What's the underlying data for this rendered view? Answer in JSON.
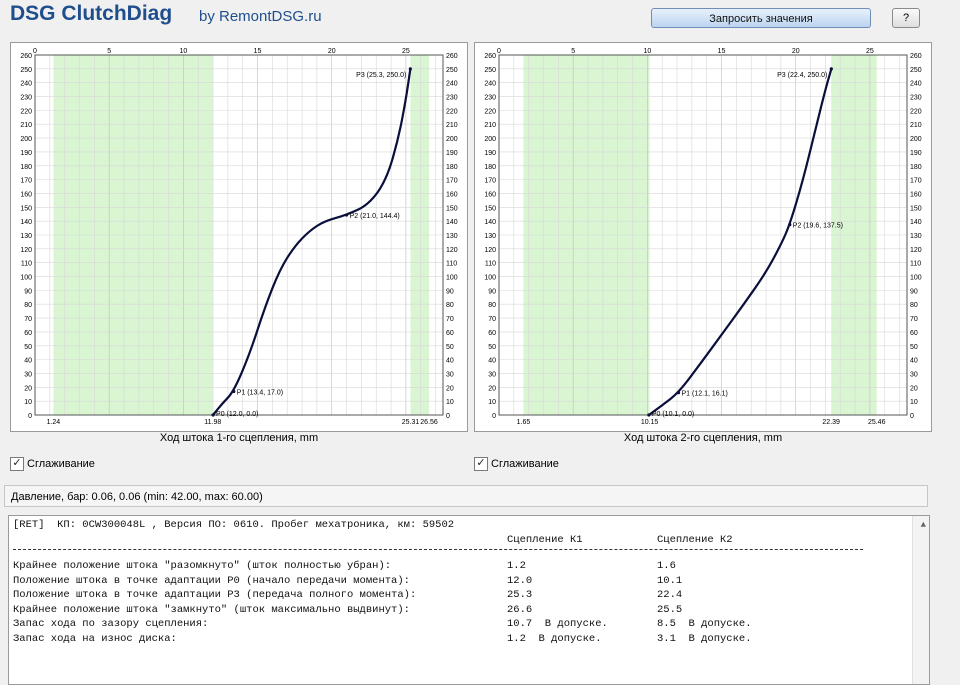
{
  "header": {
    "title": "DSG ClutchDiag",
    "subtitle": "by RemontDSG.ru",
    "request_button": "Запросить значения",
    "help_button": "?"
  },
  "chart_data": [
    {
      "type": "line",
      "xlabel": "Ход штока 1-го сцепления, mm",
      "x_ticks": [
        0,
        5,
        10,
        15,
        20,
        25
      ],
      "xlim": [
        0,
        27.5
      ],
      "ylim": [
        0,
        260
      ],
      "y_ticks_step": 10,
      "grid": true,
      "green_bands": [
        [
          1.24,
          11.98
        ],
        [
          25.31,
          26.56
        ]
      ],
      "bottom_labels": [
        "1.24",
        "11.98",
        "25.31",
        "26.56"
      ],
      "bottom_values": [
        1.24,
        11.98,
        25.31,
        26.56
      ],
      "curve": {
        "x": [
          12.0,
          12.6,
          13.4,
          14.5,
          15.5,
          16.5,
          17.5,
          18.5,
          19.5,
          21.0,
          22.5,
          23.7,
          24.5,
          25.0,
          25.3
        ],
        "y": [
          0,
          8,
          17,
          45,
          78,
          105,
          122,
          133,
          140,
          144.4,
          152,
          170,
          200,
          228,
          250
        ]
      },
      "points": [
        {
          "label": "P0 (12.0, 0.0)",
          "x": 12.0,
          "y": 0.0
        },
        {
          "label": "P1 (13.4, 17.0)",
          "x": 13.4,
          "y": 17.0
        },
        {
          "label": "P2 (21.0, 144.4)",
          "x": 21.0,
          "y": 144.4
        },
        {
          "label": "P3 (25.3, 250.0)",
          "x": 25.3,
          "y": 250.0
        }
      ]
    },
    {
      "type": "line",
      "xlabel": "Ход штока 2-го сцепления, mm",
      "x_ticks": [
        0,
        5,
        10,
        15,
        20,
        25
      ],
      "xlim": [
        0,
        27.5
      ],
      "ylim": [
        0,
        260
      ],
      "y_ticks_step": 10,
      "grid": true,
      "green_bands": [
        [
          1.65,
          10.15
        ],
        [
          22.39,
          25.46
        ]
      ],
      "bottom_labels": [
        "1.65",
        "10.15",
        "22.39",
        "25.46"
      ],
      "bottom_values": [
        1.65,
        10.15,
        22.39,
        25.46
      ],
      "curve": {
        "x": [
          10.1,
          11.0,
          12.1,
          13.5,
          15.0,
          16.5,
          18.0,
          19.0,
          19.6,
          20.5,
          21.3,
          22.0,
          22.4
        ],
        "y": [
          0,
          7,
          16.1,
          36,
          58,
          80,
          103,
          123,
          137.5,
          170,
          205,
          235,
          250
        ]
      },
      "points": [
        {
          "label": "P0 (10.1, 0.0)",
          "x": 10.1,
          "y": 0.0
        },
        {
          "label": "P1 (12.1, 16.1)",
          "x": 12.1,
          "y": 16.1
        },
        {
          "label": "P2 (19.6, 137.5)",
          "x": 19.6,
          "y": 137.5
        },
        {
          "label": "P3 (22.4, 250.0)",
          "x": 22.4,
          "y": 250.0
        }
      ]
    }
  ],
  "chart_colors": {
    "band": "#d9f5d2",
    "curve": "#0a0f3c",
    "grid": "#d8d8d8"
  },
  "smoothing_label_1": "Сглаживание",
  "smoothing_label_2": "Сглаживание",
  "pressure": "Давление, бар: 0.06, 0.06 (min: 42.00, max: 60.00)",
  "log": {
    "header": "[RET]  КП: 0CW300048L , Версия ПО: 0610. Пробег мехатроника, км: 59502",
    "col_k1": "Сцепление К1",
    "col_k2": "Сцепление К2",
    "rows": [
      {
        "label": "Крайнее положение штока \"разомкнуто\" (шток полностью убран):",
        "k1": "1.2",
        "k2": "1.6"
      },
      {
        "label": "Положение штока в точке адаптации P0 (начало передачи момента):",
        "k1": "12.0",
        "k2": "10.1"
      },
      {
        "label": "Положение штока в точке адаптации P3 (передача полного момента):",
        "k1": "25.3",
        "k2": "22.4"
      },
      {
        "label": "Крайнее положение штока \"замкнуто\" (шток максимально выдвинут):",
        "k1": "26.6",
        "k2": "25.5"
      },
      {
        "label": "Запас хода по зазору сцепления:",
        "k1": "10.7  В допуске.",
        "k2": "8.5  В допуске."
      },
      {
        "label": "Запас хода на износ диска:",
        "k1": "1.2  В допуске.",
        "k2": "3.1  В допуске."
      }
    ]
  }
}
